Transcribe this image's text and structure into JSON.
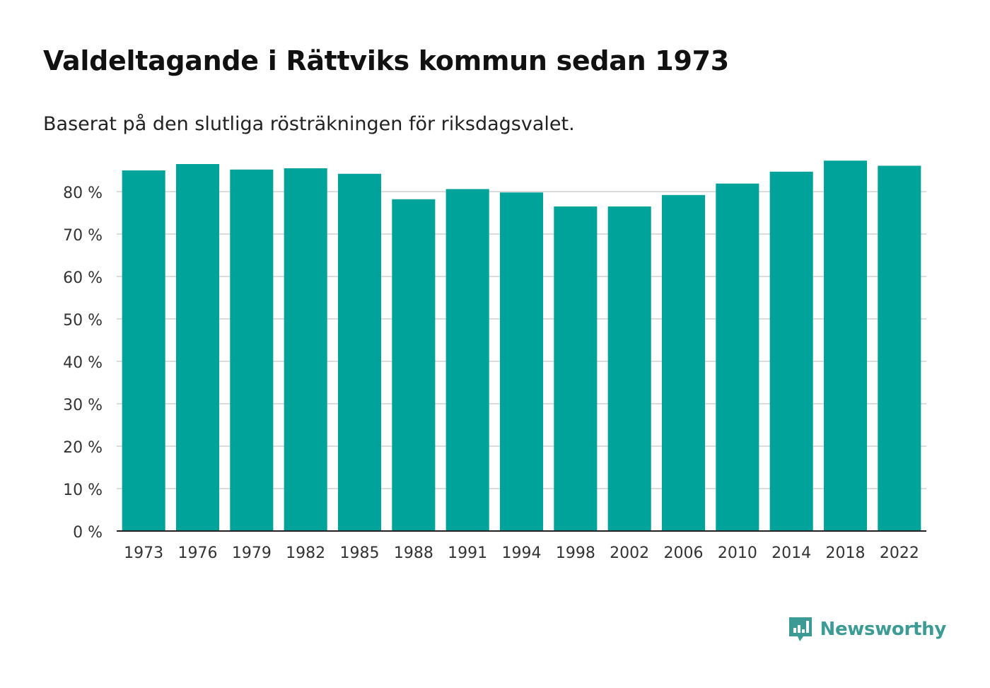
{
  "title": "Valdeltagande i Rättviks kommun sedan 1973",
  "subtitle": "Baserat på den slutliga rösträkningen för riksdagsvalet.",
  "brand": {
    "name": "Newsworthy",
    "icon": "newsworthy-logo-icon",
    "color": "#3d9b95"
  },
  "chart_data": {
    "type": "bar",
    "categories": [
      "1973",
      "1976",
      "1979",
      "1982",
      "1985",
      "1988",
      "1991",
      "1994",
      "1998",
      "2002",
      "2006",
      "2010",
      "2014",
      "2018",
      "2022"
    ],
    "values": [
      85.0,
      86.5,
      85.2,
      85.5,
      84.2,
      78.2,
      80.6,
      79.8,
      76.5,
      76.5,
      79.2,
      81.9,
      84.7,
      87.3,
      86.1
    ],
    "ylim": [
      0,
      90
    ],
    "yticks": [
      0,
      10,
      20,
      30,
      40,
      50,
      60,
      70,
      80
    ],
    "ytick_labels": [
      "0 %",
      "10 %",
      "20 %",
      "30 %",
      "40 %",
      "50 %",
      "60 %",
      "70 %",
      "80 %"
    ],
    "xlabel": "",
    "ylabel": "",
    "grid": true,
    "bar_color": "#00a39a",
    "grid_color": "#dcdcdc",
    "axis_color": "#222222"
  }
}
